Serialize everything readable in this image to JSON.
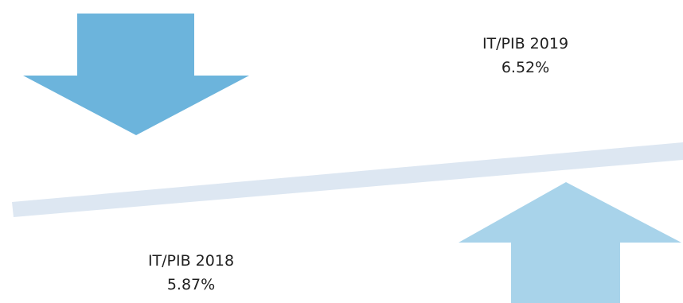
{
  "labels": {
    "upper": {
      "title": "IT/PIB 2019",
      "value": "6.52%"
    },
    "lower": {
      "title": "IT/PIB 2018",
      "value": "5.87%"
    }
  },
  "colors": {
    "down_arrow": "#6cb4dc",
    "up_arrow": "#a8d3ea",
    "bar": "#dde7f2",
    "text": "#1f1f1f"
  }
}
